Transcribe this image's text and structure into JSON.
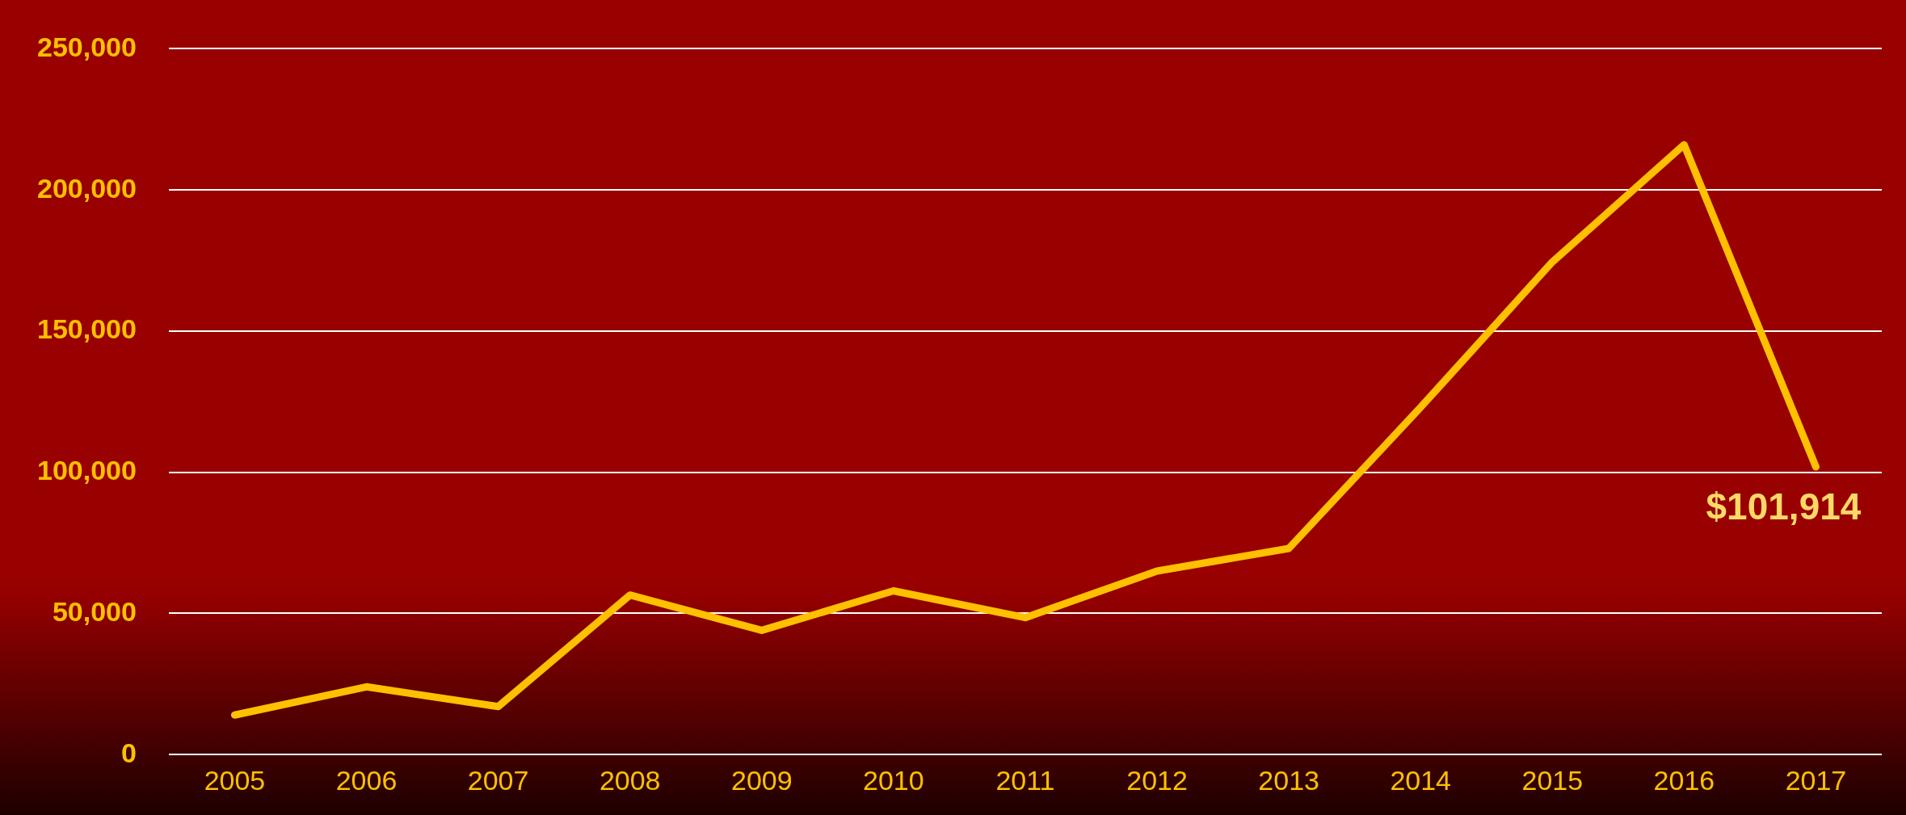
{
  "chart_data": {
    "type": "line",
    "categories": [
      "2005",
      "2006",
      "2007",
      "2008",
      "2009",
      "2010",
      "2011",
      "2012",
      "2013",
      "2014",
      "2015",
      "2016",
      "2017"
    ],
    "series": [
      {
        "color": "#ffc000",
        "values": [
          14000,
          24000,
          17000,
          56500,
          44000,
          58000,
          48500,
          65000,
          73000,
          123000,
          174500,
          216000,
          101914
        ],
        "value_labels": [
          null,
          null,
          null,
          null,
          null,
          null,
          null,
          null,
          null,
          null,
          null,
          null,
          "$101,914"
        ]
      }
    ],
    "ylim": [
      0,
      250000
    ],
    "yticks": [
      {
        "value": 0,
        "label": "0"
      },
      {
        "value": 50000,
        "label": "50,000"
      },
      {
        "value": 100000,
        "label": "100,000"
      },
      {
        "value": 150000,
        "label": "150,000"
      },
      {
        "value": 200000,
        "label": "200,000"
      },
      {
        "value": 250000,
        "label": "250,000"
      }
    ],
    "grid": "y",
    "legend": false,
    "marker": "none",
    "line_style": "solid"
  }
}
